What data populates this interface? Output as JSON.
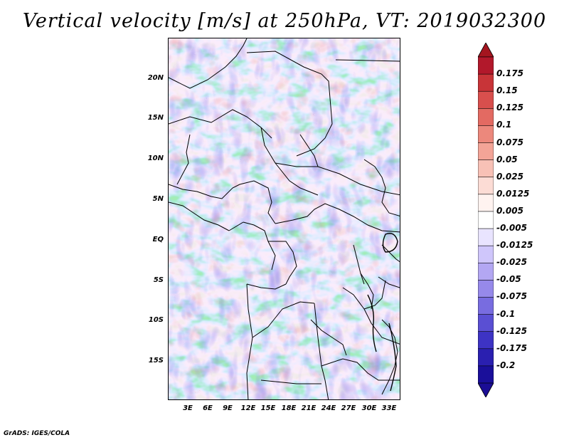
{
  "title": "Vertical velocity [m/s] at 250hPa, VT: 2019032300",
  "footer": "GrADS: IGES/COLA",
  "map": {
    "variable": "Vertical velocity",
    "units": "m/s",
    "level": "250hPa",
    "valid_time": "2019032300",
    "lat_labels": [
      "20N",
      "15N",
      "10N",
      "5N",
      "EQ",
      "5S",
      "10S",
      "15S"
    ],
    "lat_values": [
      20,
      15,
      10,
      5,
      0,
      -5,
      -10,
      -15
    ],
    "lon_labels": [
      "3E",
      "6E",
      "9E",
      "12E",
      "15E",
      "18E",
      "21E",
      "24E",
      "27E",
      "30E",
      "33E"
    ],
    "lon_values": [
      3,
      6,
      9,
      12,
      15,
      18,
      21,
      24,
      27,
      30,
      33
    ],
    "extent": {
      "lon_min": 0,
      "lon_max": 35,
      "lat_min": -20,
      "lat_max": 25
    }
  },
  "colorbar": {
    "labels": [
      "0.175",
      "0.15",
      "0.125",
      "0.1",
      "0.075",
      "0.05",
      "0.025",
      "0.0125",
      "0.005",
      "-0.005",
      "-0.0125",
      "-0.025",
      "-0.05",
      "-0.075",
      "-0.1",
      "-0.125",
      "-0.175",
      "-0.2"
    ],
    "colors": [
      "#b2182b",
      "#c83438",
      "#d84f4d",
      "#e36a62",
      "#ec887c",
      "#f3a497",
      "#f8c1b6",
      "#fcdcd5",
      "#fff3f0",
      "#ffffff",
      "#e9e4ff",
      "#cfc6fb",
      "#b3a7f3",
      "#9689ea",
      "#786ce0",
      "#5a4fd3",
      "#3d33c4",
      "#2a1fb0",
      "#1a0f9a"
    ],
    "arrow_top_color": "#a4151f",
    "arrow_bottom_color": "#1b0d95"
  }
}
